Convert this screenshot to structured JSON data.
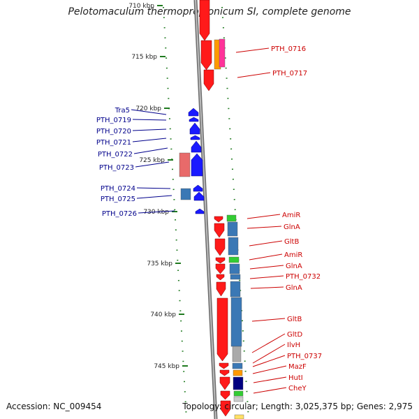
{
  "title": "Pelotomaculum thermopropionicum SI, complete genome",
  "footer": {
    "accession": "Accession: NC_009454",
    "summary": "Topology: circular; Length: 3,025,375 bp; Genes: 2,975"
  },
  "colors": {
    "reverse_strand": "#ff1a1a",
    "forward_strand": "#1a1aff",
    "backbone": "#888888",
    "tick": "#1f7a1f",
    "label_forward": "#00008b",
    "label_reverse": "#cc0000"
  },
  "scale": {
    "tick_labels": [
      "710 kbp",
      "715 kbp",
      "720 kbp",
      "725 kbp",
      "730 kbp",
      "735 kbp",
      "740 kbp",
      "745 kbp"
    ]
  },
  "forward_labels": [
    "Tra5",
    "PTH_0719",
    "PTH_0720",
    "PTH_0721",
    "PTH_0722",
    "PTH_0723",
    "PTH_0724",
    "PTH_0725",
    "PTH_0726"
  ],
  "reverse_labels": [
    "PTH_0716",
    "PTH_0717",
    "AmiR",
    "GlnA",
    "GltB",
    "AmiR",
    "GlnA",
    "PTH_0732",
    "GlnA",
    "GltB",
    "GltD",
    "IlvH",
    "PTH_0737",
    "MazF",
    "HutI",
    "CheY"
  ]
}
